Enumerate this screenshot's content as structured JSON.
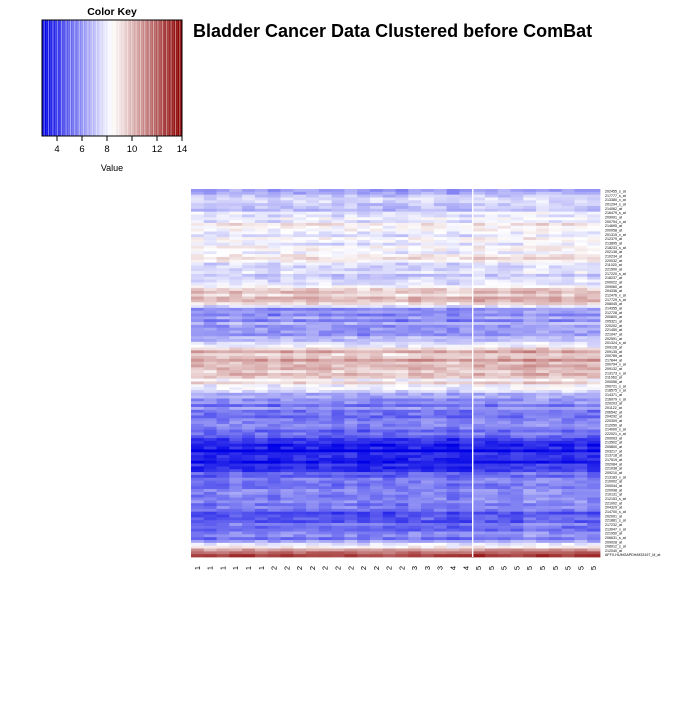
{
  "chart_data": {
    "type": "heatmap",
    "title": "Bladder Cancer Data Clustered before ComBat",
    "color_key": {
      "title": "Color Key",
      "xlabel": "Value",
      "ticks": [
        "4",
        "6",
        "8",
        "10",
        "12",
        "14"
      ],
      "range": [
        2.8,
        14
      ],
      "low_color": "#0000e6",
      "mid_color": "#ffffff",
      "high_color": "#8b0000"
    },
    "columns": [
      "1",
      "1",
      "1",
      "1",
      "1",
      "1",
      "2",
      "2",
      "2",
      "2",
      "2",
      "2",
      "2",
      "2",
      "2",
      "2",
      "2",
      "3",
      "3",
      "3",
      "4",
      "4",
      "5",
      "5",
      "5",
      "5",
      "5",
      "5",
      "5",
      "5",
      "5",
      "5"
    ],
    "column_break_after": 21,
    "row_labels": [
      "202455_s_at",
      "217777_s_at",
      "213380_x_at",
      "201294_s_at",
      "214062_at",
      "216479_s_at",
      "209091_at",
      "200794_x_at",
      "214695_at",
      "200058_at",
      "201315_x_at",
      "212379_at",
      "213895_at",
      "218233_s_at",
      "202138_at",
      "210234_at",
      "220032_at",
      "211020_at",
      "221500_at",
      "217220_s_at",
      "218237_at",
      "209022_at",
      "209060_at",
      "204336_at",
      "212476_x_at",
      "217729_s_at",
      "208045_at",
      "214355_at",
      "212728_at",
      "200800_at",
      "205321_at",
      "220202_at",
      "221450_at",
      "221047_at",
      "202591_at",
      "201324_s_at",
      "209128_at",
      "209135_at",
      "200789_at",
      "217844_at",
      "200794_x_at",
      "209132_at",
      "213173_x_at",
      "211063_at",
      "200056_at",
      "200721_s_at",
      "218575_x_at",
      "214371_at",
      "216079_x_at",
      "220203_at",
      "201122_at",
      "206542_at",
      "204292_at",
      "220309_at",
      "212050_at",
      "214000_s_at",
      "222021_x_at",
      "200003_at",
      "213502_at",
      "205800_at",
      "203217_at",
      "213718_at",
      "217519_at",
      "202084_at",
      "221038_at",
      "209210_at",
      "213183_x_at",
      "210002_at",
      "200044_at",
      "220098_at",
      "210131_at",
      "212153_s_at",
      "221002_at",
      "204329_at",
      "214700_s_at",
      "202001_at",
      "221881_s_at",
      "217232_at",
      "213047_x_at",
      "221950_at",
      "206631_s_at",
      "209028_at",
      "208912_s_at",
      "212040_at",
      "AFFX-HUMGAPDH/M33197_M_at"
    ],
    "column_axis_label": "",
    "row_axis_label": ""
  }
}
